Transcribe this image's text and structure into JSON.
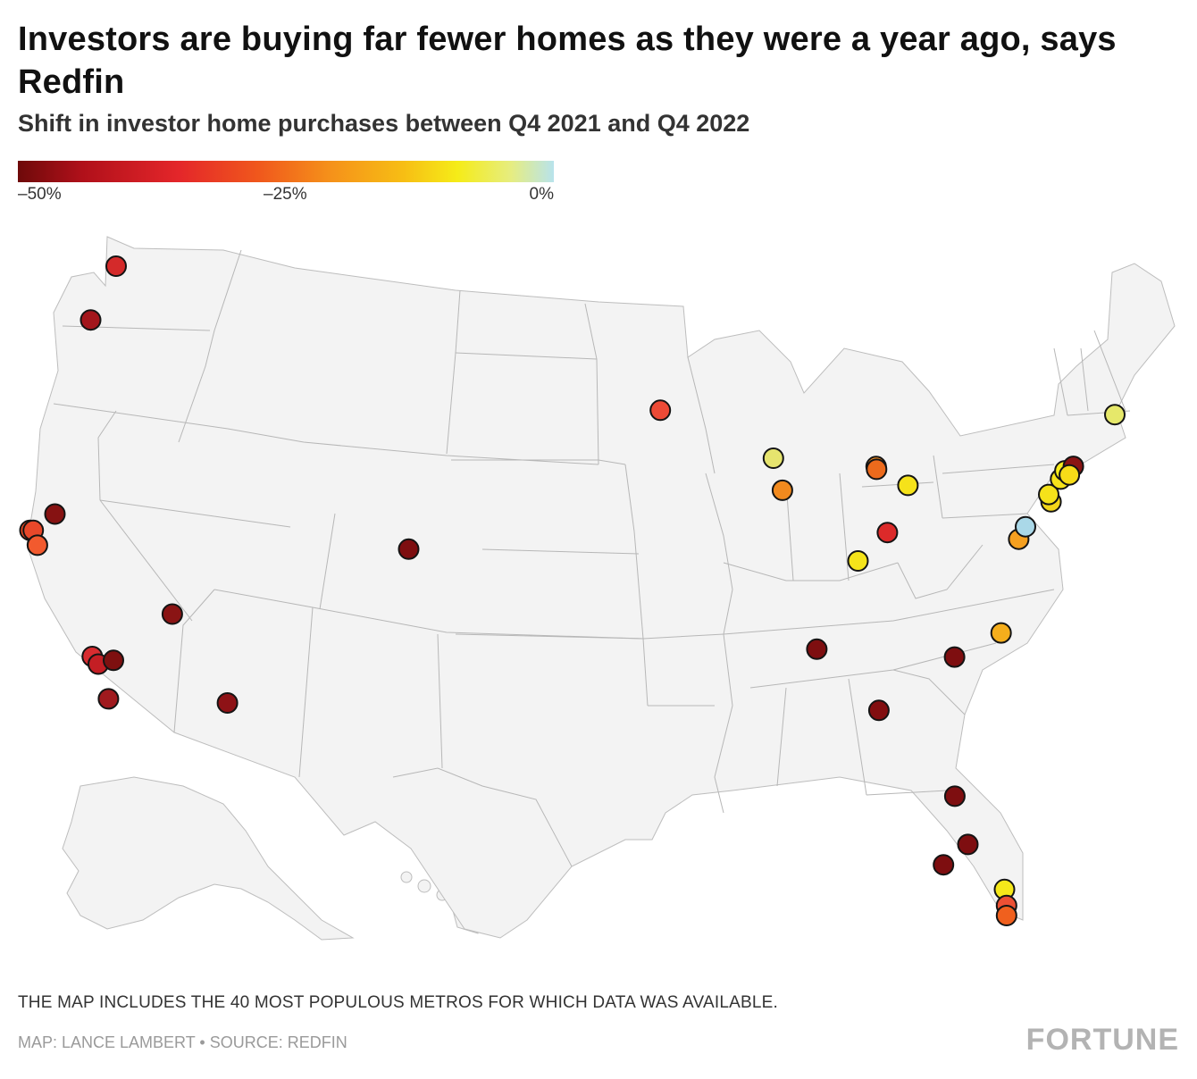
{
  "title": "Investors are buying far fewer homes as they were a year ago, says Redfin",
  "subtitle": "Shift in investor home purchases between Q4 2021 and Q4 2022",
  "legend": {
    "ticks": [
      "–50%",
      "–25%",
      "0%"
    ],
    "colors": [
      "#6e0a0a",
      "#b0101a",
      "#e4262a",
      "#f0581c",
      "#f5901a",
      "#f7be14",
      "#f5ec18",
      "#e6ed80",
      "#b8e3ec"
    ]
  },
  "note": "THE MAP INCLUDES THE 40 MOST POPULOUS METROS FOR WHICH DATA WAS AVAILABLE.",
  "credit": "MAP: LANCE LAMBERT • SOURCE: REDFIN",
  "brand": "FORTUNE",
  "map_data": {
    "type": "symbol-map",
    "region": "United States",
    "metros": [
      {
        "lon": -122.33,
        "lat": 47.61,
        "color": "#d42a2a"
      },
      {
        "lon": -122.68,
        "lat": 45.52,
        "color": "#a3161c"
      },
      {
        "lon": -121.49,
        "lat": 38.58,
        "color": "#861212"
      },
      {
        "lon": -122.42,
        "lat": 37.77,
        "color": "#ee4a24"
      },
      {
        "lon": -122.27,
        "lat": 37.8,
        "color": "#e8482a"
      },
      {
        "lon": -121.89,
        "lat": 37.34,
        "color": "#f25a2e"
      },
      {
        "lon": -115.14,
        "lat": 36.17,
        "color": "#8a1414"
      },
      {
        "lon": -118.24,
        "lat": 34.05,
        "color": "#d82c30"
      },
      {
        "lon": -117.91,
        "lat": 33.84,
        "color": "#c41e24"
      },
      {
        "lon": -117.29,
        "lat": 34.1,
        "color": "#7e1010"
      },
      {
        "lon": -117.16,
        "lat": 32.72,
        "color": "#a01a1e"
      },
      {
        "lon": -112.07,
        "lat": 33.45,
        "color": "#8e1216"
      },
      {
        "lon": -104.99,
        "lat": 39.74,
        "color": "#7e0e10"
      },
      {
        "lon": -93.27,
        "lat": 44.98,
        "color": "#ec4a36"
      },
      {
        "lon": -87.91,
        "lat": 43.04,
        "color": "#e6e46e"
      },
      {
        "lon": -87.63,
        "lat": 41.88,
        "color": "#f28a1e"
      },
      {
        "lon": -83.05,
        "lat": 42.33,
        "color": "#f08a20"
      },
      {
        "lon": -83.05,
        "lat": 42.23,
        "color": "#ec6a1c"
      },
      {
        "lon": -81.69,
        "lat": 41.5,
        "color": "#f5e21a"
      },
      {
        "lon": -82.99,
        "lat": 39.96,
        "color": "#dc2a2a"
      },
      {
        "lon": -84.51,
        "lat": 39.1,
        "color": "#f5e41a"
      },
      {
        "lon": -86.78,
        "lat": 36.16,
        "color": "#7e0e10"
      },
      {
        "lon": -84.39,
        "lat": 33.75,
        "color": "#820e10"
      },
      {
        "lon": -80.84,
        "lat": 35.23,
        "color": "#7e0e10"
      },
      {
        "lon": -78.64,
        "lat": 35.78,
        "color": "#f5ae1c"
      },
      {
        "lon": -77.04,
        "lat": 38.91,
        "color": "#f5a020"
      },
      {
        "lon": -76.61,
        "lat": 39.29,
        "color": "#aad8e8"
      },
      {
        "lon": -75.17,
        "lat": 39.95,
        "color": "#f3d61a"
      },
      {
        "lon": -75.2,
        "lat": 40.22,
        "color": "#f5e21a"
      },
      {
        "lon": -74.47,
        "lat": 40.65,
        "color": "#f5e21a"
      },
      {
        "lon": -74.17,
        "lat": 40.9,
        "color": "#f7ec1c"
      },
      {
        "lon": -73.72,
        "lat": 40.98,
        "color": "#8a1414"
      },
      {
        "lon": -74.01,
        "lat": 40.72,
        "color": "#f7dc18"
      },
      {
        "lon": -71.06,
        "lat": 42.36,
        "color": "#e6e86a"
      },
      {
        "lon": -81.66,
        "lat": 30.33,
        "color": "#7e0e10"
      },
      {
        "lon": -81.38,
        "lat": 28.54,
        "color": "#7e0e10"
      },
      {
        "lon": -82.46,
        "lat": 27.95,
        "color": "#7e0e10"
      },
      {
        "lon": -80.14,
        "lat": 26.71,
        "color": "#f5e81a"
      },
      {
        "lon": -80.14,
        "lat": 26.12,
        "color": "#ec5034"
      },
      {
        "lon": -80.19,
        "lat": 25.76,
        "color": "#f0601e"
      }
    ]
  }
}
